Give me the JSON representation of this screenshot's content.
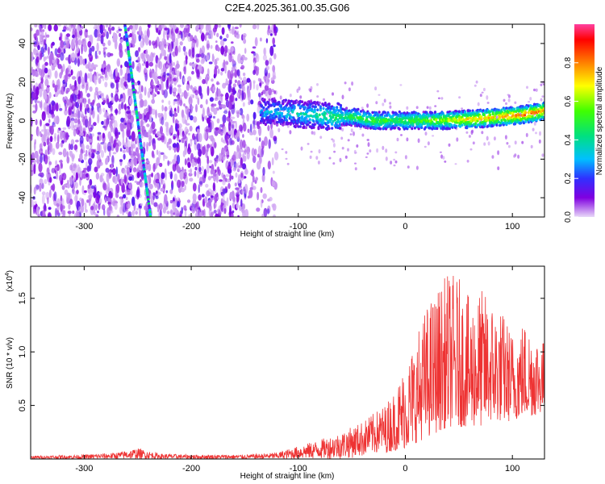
{
  "title": "C2E4.2025.361.00.35.G06",
  "chart_data": [
    {
      "type": "heatmap",
      "title": "",
      "xlabel": "Height of straight line (km)",
      "ylabel": "Frequency (Hz)",
      "xlim": [
        -350,
        130
      ],
      "ylim": [
        -50,
        50
      ],
      "xticks": [
        "-300",
        "-200",
        "-100",
        "0",
        "100"
      ],
      "xtick_values": [
        -300,
        -200,
        -100,
        0,
        100
      ],
      "yticks": [
        "40",
        "20",
        "0",
        "-20",
        "-40"
      ],
      "ytick_values": [
        40,
        20,
        0,
        -20,
        -40
      ],
      "colorbar": {
        "label": "Normalized spectral amplitude",
        "range": [
          0,
          1
        ],
        "ticks": [
          "0.0",
          "0.2",
          "0.4",
          "0.6",
          "0.8"
        ],
        "tick_values": [
          0.0,
          0.2,
          0.4,
          0.6,
          0.8
        ],
        "colors": [
          "#e8d8f8",
          "#8000e0",
          "#3030ff",
          "#00c0ff",
          "#00e080",
          "#40ff00",
          "#ffff00",
          "#ff8000",
          "#ff0000",
          "#ff40a0"
        ]
      },
      "features": {
        "noise_region_x": [
          -350,
          -120
        ],
        "streak": {
          "start": [
            -262,
            50
          ],
          "end": [
            -238,
            -50
          ],
          "amplitude": 0.35
        },
        "signal_band": {
          "x": [
            -135,
            -110,
            -90,
            -70,
            -50,
            -30,
            -10,
            10,
            30,
            50,
            70,
            90,
            110,
            130
          ],
          "freq": [
            5,
            4,
            3,
            2,
            2,
            0,
            0,
            0,
            0,
            0.5,
            1,
            2,
            3,
            5
          ],
          "amplitude": [
            0.3,
            0.35,
            0.4,
            0.45,
            0.5,
            0.55,
            0.5,
            0.55,
            0.6,
            0.7,
            0.75,
            0.8,
            0.85,
            0.8
          ]
        }
      }
    },
    {
      "type": "line",
      "title": "",
      "xlabel": "Height of straight line (km)",
      "ylabel": "SNR (10 * v/v)",
      "y_multiplier": "(x10^4)",
      "multiplier_base": "(x10",
      "multiplier_exp": "4",
      "multiplier_close": ")",
      "xlim": [
        -350,
        130
      ],
      "ylim": [
        0,
        1.8
      ],
      "xticks": [
        "-300",
        "-200",
        "-100",
        "0",
        "100"
      ],
      "xtick_values": [
        -300,
        -200,
        -100,
        0,
        100
      ],
      "yticks": [
        "0.5",
        "1.0",
        "1.5"
      ],
      "ytick_values": [
        0.5,
        1.0,
        1.5
      ],
      "color": "#ee3333",
      "envelope": {
        "x": [
          -350,
          -300,
          -270,
          -250,
          -230,
          -200,
          -150,
          -120,
          -100,
          -80,
          -60,
          -40,
          -20,
          -10,
          0,
          10,
          20,
          30,
          40,
          50,
          60,
          70,
          80,
          90,
          100,
          110,
          120,
          130
        ],
        "lower": [
          0.0,
          0.0,
          0.0,
          0.0,
          0.0,
          0.0,
          0.0,
          0.0,
          0.0,
          0.0,
          0.0,
          0.02,
          0.05,
          0.08,
          0.1,
          0.15,
          0.2,
          0.25,
          0.3,
          0.3,
          0.3,
          0.3,
          0.35,
          0.35,
          0.35,
          0.4,
          0.4,
          0.45
        ],
        "upper": [
          0.03,
          0.04,
          0.06,
          0.1,
          0.05,
          0.04,
          0.04,
          0.06,
          0.12,
          0.18,
          0.25,
          0.35,
          0.5,
          0.65,
          0.9,
          1.15,
          1.45,
          1.6,
          1.75,
          1.7,
          1.5,
          1.6,
          1.5,
          1.4,
          1.2,
          1.3,
          1.25,
          1.1
        ]
      }
    }
  ]
}
